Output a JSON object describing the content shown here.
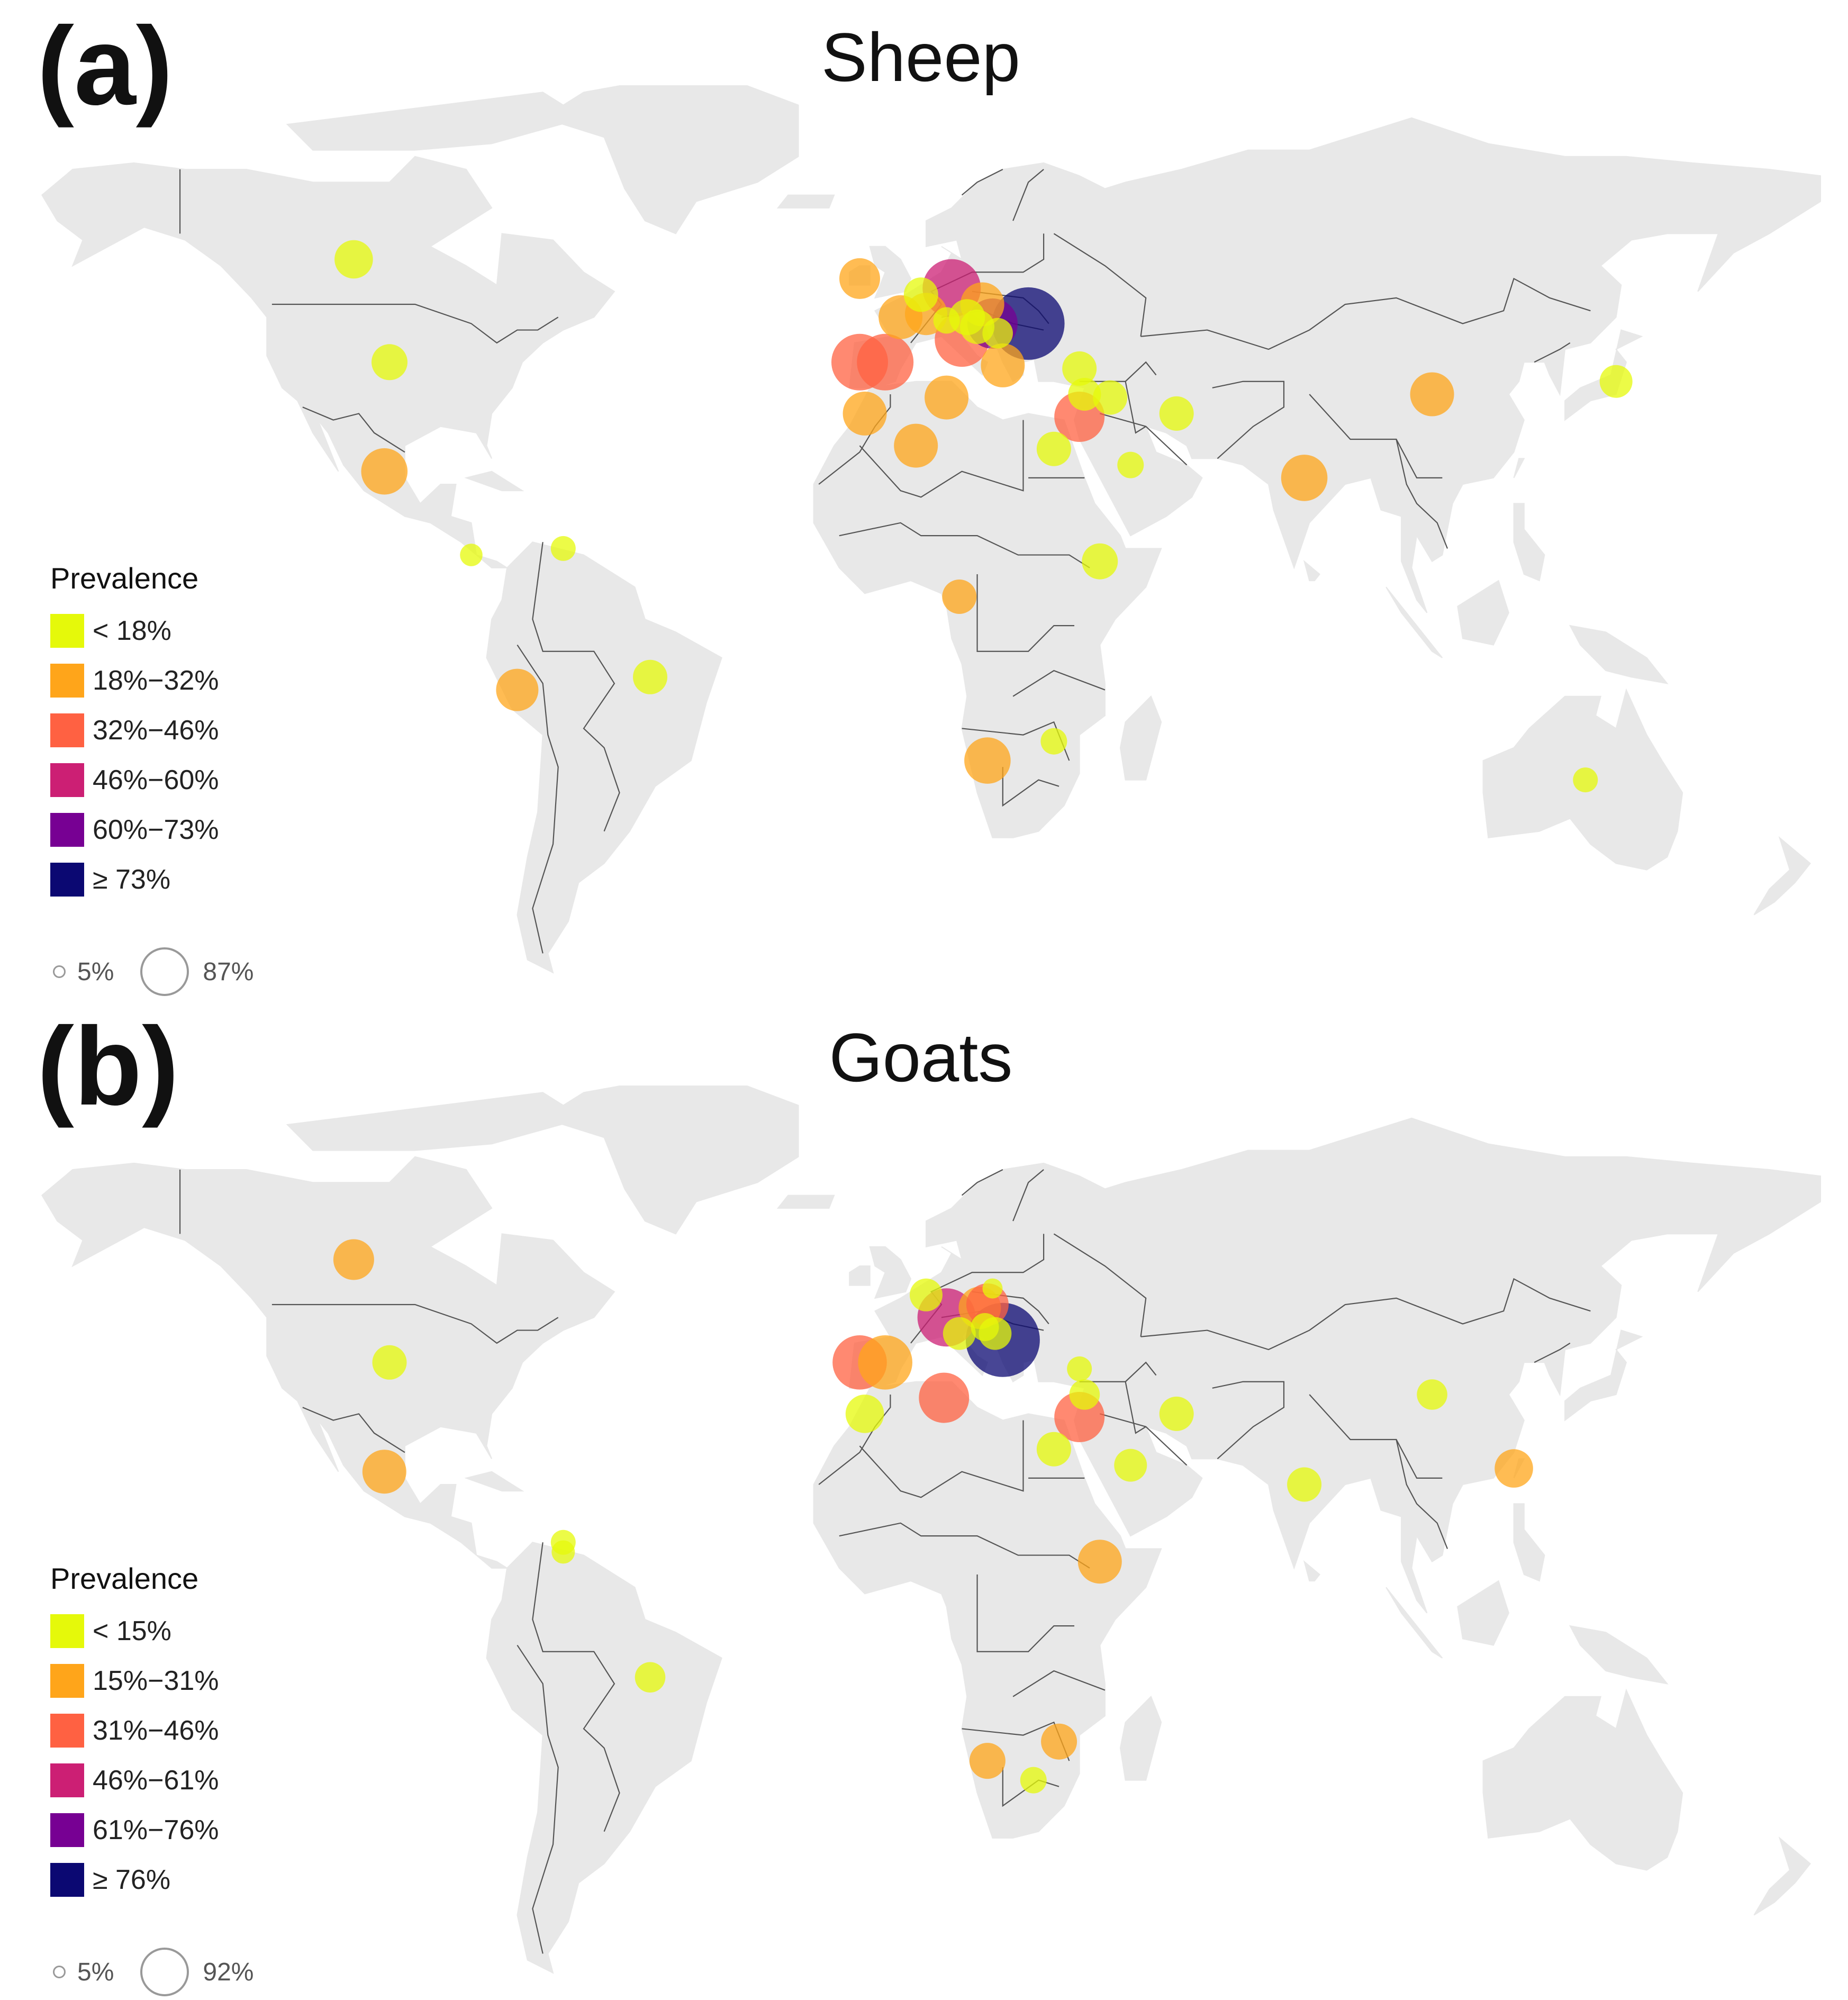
{
  "colors": {
    "land": "#e8e8e8",
    "border": "#555555",
    "classes": [
      "#e5f90a",
      "#ffa51a",
      "#ff6142",
      "#cc1f74",
      "#770093",
      "#0b0872"
    ]
  },
  "panels": [
    {
      "id": "a",
      "letter": "(a)",
      "title": "Sheep",
      "legend_title": "Prevalence",
      "legend": [
        "< 18%",
        "18%−32%",
        "32%−46%",
        "46%−60%",
        "60%−73%",
        "≥ 73%"
      ],
      "size_legend": {
        "min": "5%",
        "max": "87%"
      },
      "points": [
        {
          "lon": -107,
          "lat": 56,
          "cls": 0,
          "size": 0.35
        },
        {
          "lon": -100,
          "lat": 40,
          "cls": 0,
          "size": 0.32
        },
        {
          "lon": -101,
          "lat": 23,
          "cls": 1,
          "size": 0.45
        },
        {
          "lon": -84,
          "lat": 10,
          "cls": 0,
          "size": 0.15
        },
        {
          "lon": -66,
          "lat": 11,
          "cls": 0,
          "size": 0.18
        },
        {
          "lon": -75,
          "lat": -11,
          "cls": 1,
          "size": 0.4
        },
        {
          "lon": -49,
          "lat": -9,
          "cls": 0,
          "size": 0.3
        },
        {
          "lon": -8,
          "lat": 53,
          "cls": 1,
          "size": 0.38
        },
        {
          "lon": 0,
          "lat": 47,
          "cls": 1,
          "size": 0.42
        },
        {
          "lon": 4,
          "lat": 50.5,
          "cls": 0,
          "size": 0.3
        },
        {
          "lon": 5,
          "lat": 47.5,
          "cls": 1,
          "size": 0.4
        },
        {
          "lon": 9,
          "lat": 46.5,
          "cls": 0,
          "size": 0.2
        },
        {
          "lon": 10,
          "lat": 51.5,
          "cls": 3,
          "size": 0.6
        },
        {
          "lon": 12,
          "lat": 43.5,
          "cls": 2,
          "size": 0.55
        },
        {
          "lon": 13,
          "lat": 47,
          "cls": 0,
          "size": 0.32
        },
        {
          "lon": 15,
          "lat": 45.5,
          "cls": 0,
          "size": 0.3
        },
        {
          "lon": 16,
          "lat": 49,
          "cls": 1,
          "size": 0.42
        },
        {
          "lon": 18,
          "lat": 46,
          "cls": 4,
          "size": 0.5
        },
        {
          "lon": 19,
          "lat": 44.5,
          "cls": 0,
          "size": 0.25
        },
        {
          "lon": 20,
          "lat": 39.5,
          "cls": 1,
          "size": 0.42
        },
        {
          "lon": 25,
          "lat": 46,
          "cls": 5,
          "size": 0.78
        },
        {
          "lon": -3,
          "lat": 40,
          "cls": 2,
          "size": 0.58
        },
        {
          "lon": -8,
          "lat": 40,
          "cls": 2,
          "size": 0.58
        },
        {
          "lon": -7,
          "lat": 32,
          "cls": 1,
          "size": 0.42
        },
        {
          "lon": 3,
          "lat": 27,
          "cls": 1,
          "size": 0.42
        },
        {
          "lon": 9,
          "lat": 34.5,
          "cls": 1,
          "size": 0.42
        },
        {
          "lon": 35,
          "lat": 39,
          "cls": 0,
          "size": 0.3
        },
        {
          "lon": 41,
          "lat": 34.5,
          "cls": 0,
          "size": 0.3
        },
        {
          "lon": 36,
          "lat": 35,
          "cls": 0,
          "size": 0.28
        },
        {
          "lon": 35,
          "lat": 31.5,
          "cls": 2,
          "size": 0.5
        },
        {
          "lon": 54,
          "lat": 32,
          "cls": 0,
          "size": 0.3
        },
        {
          "lon": 30,
          "lat": 26.5,
          "cls": 0,
          "size": 0.3
        },
        {
          "lon": 45,
          "lat": 24,
          "cls": 0,
          "size": 0.2
        },
        {
          "lon": 79,
          "lat": 22,
          "cls": 1,
          "size": 0.45
        },
        {
          "lon": 104,
          "lat": 35,
          "cls": 1,
          "size": 0.42
        },
        {
          "lon": 140,
          "lat": 37,
          "cls": 0,
          "size": 0.28
        },
        {
          "lon": 39,
          "lat": 9,
          "cls": 0,
          "size": 0.32
        },
        {
          "lon": 11.5,
          "lat": 3.5,
          "cls": 1,
          "size": 0.3
        },
        {
          "lon": 17,
          "lat": -22,
          "cls": 1,
          "size": 0.45
        },
        {
          "lon": 30,
          "lat": -19,
          "cls": 0,
          "size": 0.2
        },
        {
          "lon": 134,
          "lat": -25,
          "cls": 0,
          "size": 0.18
        }
      ]
    },
    {
      "id": "b",
      "letter": "(b)",
      "title": "Goats",
      "legend_title": "Prevalence",
      "legend": [
        "< 15%",
        "15%−31%",
        "31%−46%",
        "46%−61%",
        "61%−76%",
        "≥ 76%"
      ],
      "size_legend": {
        "min": "5%",
        "max": "92%"
      },
      "points": [
        {
          "lon": -107,
          "lat": 56,
          "cls": 1,
          "size": 0.38
        },
        {
          "lon": -100,
          "lat": 40,
          "cls": 0,
          "size": 0.3
        },
        {
          "lon": -101,
          "lat": 23,
          "cls": 1,
          "size": 0.42
        },
        {
          "lon": -66,
          "lat": 12,
          "cls": 0,
          "size": 0.18
        },
        {
          "lon": -66,
          "lat": 10.5,
          "cls": 0,
          "size": 0.16
        },
        {
          "lon": -49,
          "lat": -9,
          "cls": 0,
          "size": 0.25
        },
        {
          "lon": 5,
          "lat": 50.5,
          "cls": 0,
          "size": 0.28
        },
        {
          "lon": 9,
          "lat": 47,
          "cls": 3,
          "size": 0.6
        },
        {
          "lon": 11.5,
          "lat": 44.5,
          "cls": 0,
          "size": 0.28
        },
        {
          "lon": 15.5,
          "lat": 48.5,
          "cls": 1,
          "size": 0.4
        },
        {
          "lon": 17,
          "lat": 49,
          "cls": 2,
          "size": 0.4
        },
        {
          "lon": 18,
          "lat": 51.5,
          "cls": 0,
          "size": 0.12
        },
        {
          "lon": 18.5,
          "lat": 44.5,
          "cls": 0,
          "size": 0.28
        },
        {
          "lon": 16.5,
          "lat": 45.5,
          "cls": 0,
          "size": 0.22
        },
        {
          "lon": 20,
          "lat": 43.5,
          "cls": 5,
          "size": 0.8
        },
        {
          "lon": -8,
          "lat": 40,
          "cls": 2,
          "size": 0.55
        },
        {
          "lon": -3,
          "lat": 40,
          "cls": 1,
          "size": 0.55
        },
        {
          "lon": -7,
          "lat": 32,
          "cls": 0,
          "size": 0.35
        },
        {
          "lon": 8.5,
          "lat": 34.5,
          "cls": 2,
          "size": 0.5
        },
        {
          "lon": 35,
          "lat": 39,
          "cls": 0,
          "size": 0.18
        },
        {
          "lon": 36,
          "lat": 35,
          "cls": 0,
          "size": 0.25
        },
        {
          "lon": 35,
          "lat": 31.5,
          "cls": 2,
          "size": 0.5
        },
        {
          "lon": 54,
          "lat": 32,
          "cls": 0,
          "size": 0.3
        },
        {
          "lon": 30,
          "lat": 26.5,
          "cls": 0,
          "size": 0.3
        },
        {
          "lon": 45,
          "lat": 24,
          "cls": 0,
          "size": 0.28
        },
        {
          "lon": 79,
          "lat": 21,
          "cls": 0,
          "size": 0.3
        },
        {
          "lon": 104,
          "lat": 35,
          "cls": 0,
          "size": 0.25
        },
        {
          "lon": 120,
          "lat": 23.5,
          "cls": 1,
          "size": 0.35
        },
        {
          "lon": 39,
          "lat": 9,
          "cls": 1,
          "size": 0.42
        },
        {
          "lon": 17,
          "lat": -22,
          "cls": 1,
          "size": 0.32
        },
        {
          "lon": 31,
          "lat": -19,
          "cls": 1,
          "size": 0.32
        },
        {
          "lon": 26,
          "lat": -25,
          "cls": 0,
          "size": 0.2
        }
      ]
    }
  ]
}
